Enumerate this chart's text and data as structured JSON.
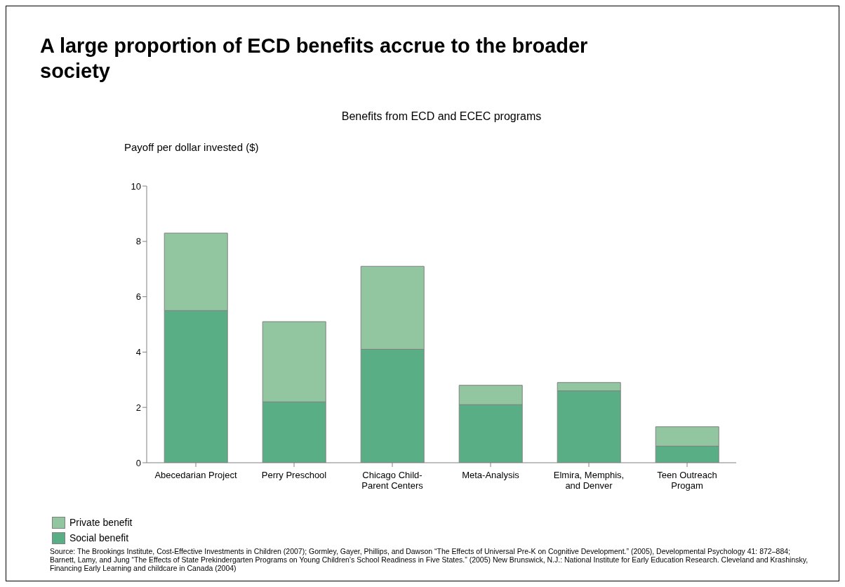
{
  "chart_data": {
    "type": "bar",
    "title": "A large proportion of ECD benefits accrue to the broader society",
    "subtitle": "Benefits from ECD and ECEC programs",
    "ylabel": "Payoff per dollar invested ($)",
    "categories": [
      "Abecedarian Project",
      "Perry Preschool",
      "Chicago Child-\nParent Centers",
      "Meta-Analysis",
      "Elmira, Memphis,\nand Denver",
      "Teen Outreach\nProgam"
    ],
    "stacked": true,
    "series": [
      {
        "name": "Social benefit",
        "color": "#5aae85",
        "values": [
          5.5,
          2.2,
          4.1,
          2.1,
          2.6,
          0.6
        ]
      },
      {
        "name": "Private benefit",
        "color": "#91c6a1",
        "values": [
          2.8,
          2.9,
          3.0,
          0.7,
          0.3,
          0.7
        ]
      }
    ],
    "ylim": [
      0,
      10
    ],
    "yticks": [
      0,
      2,
      4,
      6,
      8,
      10
    ],
    "grid": false,
    "legend": "bottom left",
    "annotations": [
      "Source: The Brookings Institute, Cost-Effective Investments in Children (2007); Gormley, Gayer, Phillips, and Dawson “The Effects of Universal Pre-K on Cognitive Development.” (2005), Developmental Psychology 41: 872–884; Barnett, Lamy, and Jung “The Effects of State Prekindergarten Programs on Young Children’s School Readiness in Five States.” (2005) New Brunswick, N.J.: National Institute for Early Education Research. Cleveland and Krashinsky, Financing Early Learning and childcare in Canada (2004)"
    ]
  }
}
